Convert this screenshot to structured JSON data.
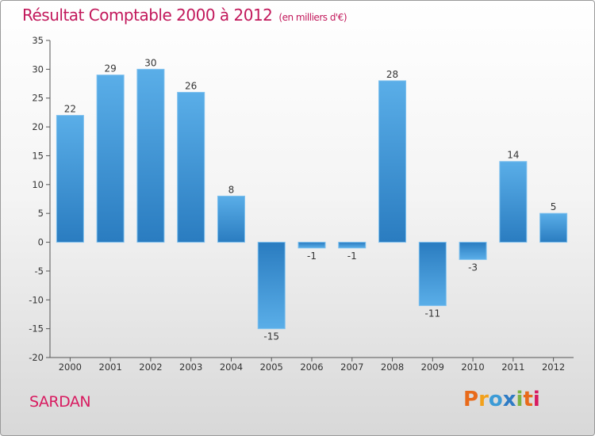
{
  "header": {
    "title": "Résultat Comptable 2000 à 2012",
    "subtitle": "(en milliers d'€)"
  },
  "footer": {
    "town": "SARDAN",
    "logo_letters": [
      "P",
      "r",
      "o",
      "x",
      "i",
      "t",
      "i"
    ]
  },
  "colors": {
    "bar_top": "#5aaee8",
    "bar_bottom": "#2a7cc0",
    "title": "#c2185b"
  },
  "chart_data": {
    "type": "bar",
    "title": "Résultat Comptable 2000 à 2012",
    "units": "(en milliers d'€)",
    "categories": [
      "2000",
      "2001",
      "2002",
      "2003",
      "2004",
      "2005",
      "2006",
      "2007",
      "2008",
      "2009",
      "2010",
      "2011",
      "2012"
    ],
    "values": [
      22,
      29,
      30,
      26,
      8,
      -15,
      -1,
      -1,
      28,
      -11,
      -3,
      14,
      5
    ],
    "value_labels": [
      "22",
      "29",
      "30",
      "26",
      "8",
      "-15",
      "-1",
      "-1",
      "28",
      "-11",
      "-3",
      "14",
      "5"
    ],
    "yticks": [
      "35",
      "30",
      "25",
      "20",
      "15",
      "10",
      "5",
      "0",
      "-5",
      "-10",
      "-15",
      "-20"
    ],
    "ylim": [
      -20,
      35
    ],
    "xlabel": "",
    "ylabel": "",
    "grid": false
  }
}
